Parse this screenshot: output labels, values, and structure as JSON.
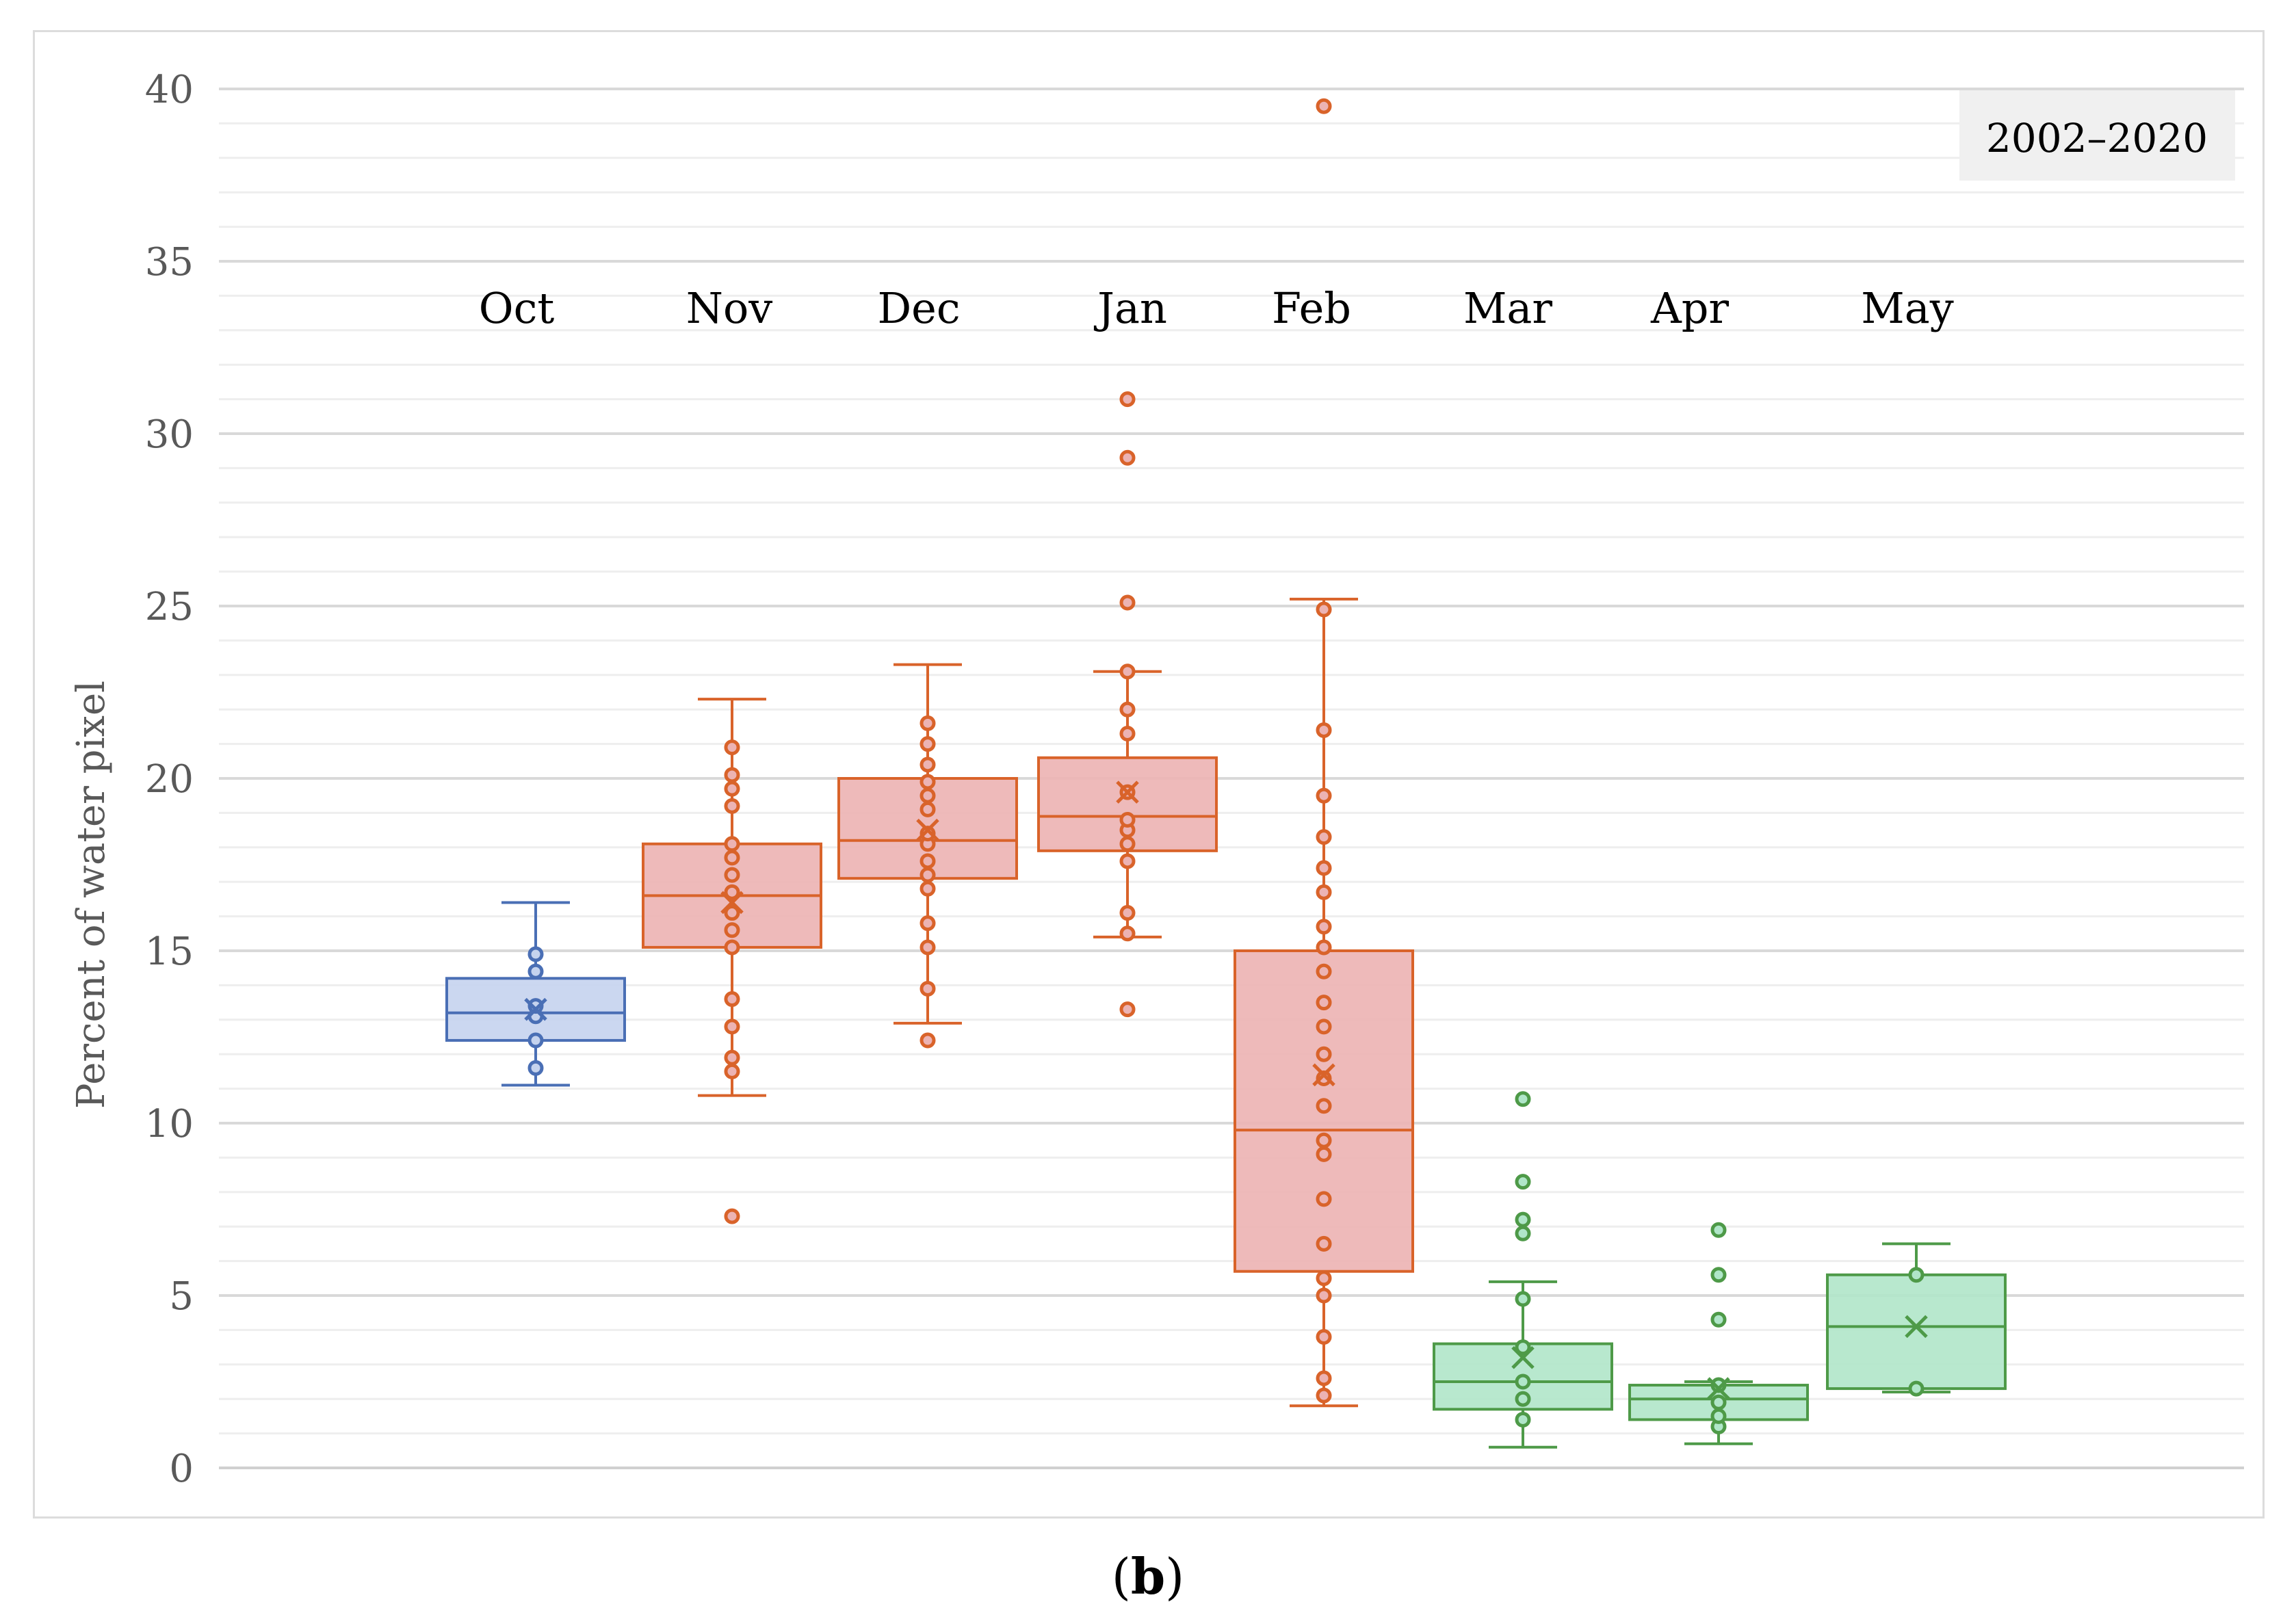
{
  "chart_data": {
    "type": "box",
    "title": "",
    "xlabel": "",
    "ylabel": "Percent of water pixel",
    "ylim": [
      0,
      40
    ],
    "yticks": [
      0,
      5,
      10,
      15,
      20,
      25,
      30,
      35,
      40
    ],
    "legend_box": "2002–2020",
    "categories": [
      "Oct",
      "Nov",
      "Dec",
      "Jan",
      "Feb",
      "Mar",
      "Apr",
      "May"
    ],
    "series": [
      {
        "name": "Oct",
        "color": "#4a6fb5",
        "fill": "#c5d3ee",
        "whisker_low": 11.1,
        "q1": 12.4,
        "median": 13.2,
        "q3": 14.2,
        "whisker_high": 16.4,
        "mean": 13.3,
        "points": [
          11.6,
          12.4,
          13.1,
          13.4,
          14.4,
          14.9
        ]
      },
      {
        "name": "Nov",
        "color": "#d9632a",
        "fill": "#ecb3b3",
        "whisker_low": 10.8,
        "q1": 15.1,
        "median": 16.6,
        "q3": 18.1,
        "whisker_high": 22.3,
        "mean": 16.4,
        "points": [
          7.3,
          11.5,
          11.9,
          12.8,
          13.6,
          15.1,
          15.6,
          16.1,
          16.7,
          17.2,
          17.7,
          18.1,
          19.2,
          19.7,
          20.1,
          20.9
        ]
      },
      {
        "name": "Dec",
        "color": "#d9632a",
        "fill": "#ecb3b3",
        "whisker_low": 12.9,
        "q1": 17.1,
        "median": 18.2,
        "q3": 20.0,
        "whisker_high": 23.3,
        "mean": 18.5,
        "points": [
          12.4,
          13.9,
          15.1,
          15.8,
          16.8,
          17.2,
          17.6,
          18.1,
          18.4,
          19.1,
          19.5,
          19.9,
          20.4,
          21.0,
          21.6
        ]
      },
      {
        "name": "Jan",
        "color": "#d9632a",
        "fill": "#ecb3b3",
        "whisker_low": 15.4,
        "q1": 17.9,
        "median": 18.9,
        "q3": 20.6,
        "whisker_high": 23.1,
        "mean": 19.6,
        "points": [
          13.3,
          15.5,
          16.1,
          17.6,
          18.1,
          18.5,
          18.8,
          19.6,
          21.3,
          22.0,
          23.1,
          25.1,
          29.3,
          31.0
        ]
      },
      {
        "name": "Feb",
        "color": "#d9632a",
        "fill": "#ecb3b3",
        "whisker_low": 1.8,
        "q1": 5.7,
        "median": 9.8,
        "q3": 15.0,
        "whisker_high": 25.2,
        "mean": 11.4,
        "points": [
          2.1,
          2.6,
          3.8,
          5.0,
          5.5,
          6.5,
          7.8,
          9.1,
          9.5,
          10.5,
          11.3,
          12.0,
          12.8,
          13.5,
          14.4,
          15.1,
          15.7,
          16.7,
          17.4,
          18.3,
          19.5,
          21.4,
          24.9,
          39.5
        ]
      },
      {
        "name": "Mar",
        "color": "#4e9a48",
        "fill": "#b0e6c9",
        "whisker_low": 0.6,
        "q1": 1.7,
        "median": 2.5,
        "q3": 3.6,
        "whisker_high": 5.4,
        "mean": 3.2,
        "points": [
          1.4,
          2.0,
          2.5,
          3.5,
          4.9,
          6.8,
          7.2,
          8.3,
          10.7
        ]
      },
      {
        "name": "Apr",
        "color": "#4e9a48",
        "fill": "#b0e6c9",
        "whisker_low": 0.7,
        "q1": 1.4,
        "median": 2.0,
        "q3": 2.4,
        "whisker_high": 2.5,
        "mean": 2.3,
        "points": [
          1.2,
          1.5,
          1.9,
          2.4,
          4.3,
          5.6,
          6.9
        ]
      },
      {
        "name": "May",
        "color": "#4e9a48",
        "fill": "#b0e6c9",
        "whisker_low": 2.2,
        "q1": 2.3,
        "median": 4.1,
        "q3": 5.6,
        "whisker_high": 6.5,
        "mean": 4.1,
        "points": [
          2.3,
          5.6
        ]
      }
    ]
  },
  "caption": {
    "open": "(",
    "letter": "b",
    "close": ")"
  }
}
